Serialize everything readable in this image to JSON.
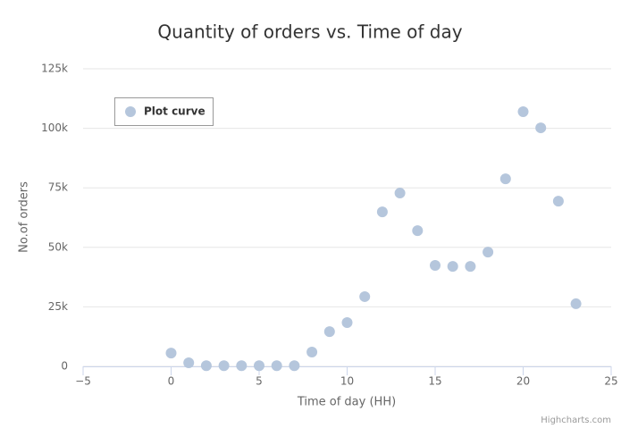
{
  "chart_data": {
    "type": "scatter",
    "title": "Quantity of orders vs. Time of day",
    "x_label": "Time of day (HH)",
    "y_label": "No.of orders",
    "series": [
      {
        "name": "Plot curve",
        "color": "#b5c6dc",
        "x": [
          0,
          1,
          2,
          3,
          4,
          5,
          6,
          7,
          8,
          9,
          10,
          11,
          12,
          13,
          14,
          15,
          16,
          17,
          18,
          19,
          20,
          21,
          22,
          23
        ],
        "values": [
          5600,
          1500,
          300,
          300,
          300,
          300,
          300,
          300,
          6000,
          14600,
          18400,
          29300,
          64900,
          72800,
          57000,
          42400,
          42000,
          42000,
          48000,
          78800,
          107000,
          100200,
          69400,
          26300
        ]
      }
    ],
    "xlim": [
      -5,
      25
    ],
    "xticks": [
      {
        "value": -5,
        "label": "−5"
      },
      0,
      5,
      10,
      15,
      20,
      25
    ],
    "ylim": [
      0,
      125000
    ],
    "yticks": [
      0,
      {
        "value": 25000,
        "label": "25k"
      },
      {
        "value": 50000,
        "label": "50k"
      },
      {
        "value": 75000,
        "label": "75k"
      },
      {
        "value": 100000,
        "label": "100k"
      },
      {
        "value": 125000,
        "label": "125k"
      }
    ],
    "grid": true,
    "legend": "top-left",
    "credits": "Highcharts.com"
  }
}
